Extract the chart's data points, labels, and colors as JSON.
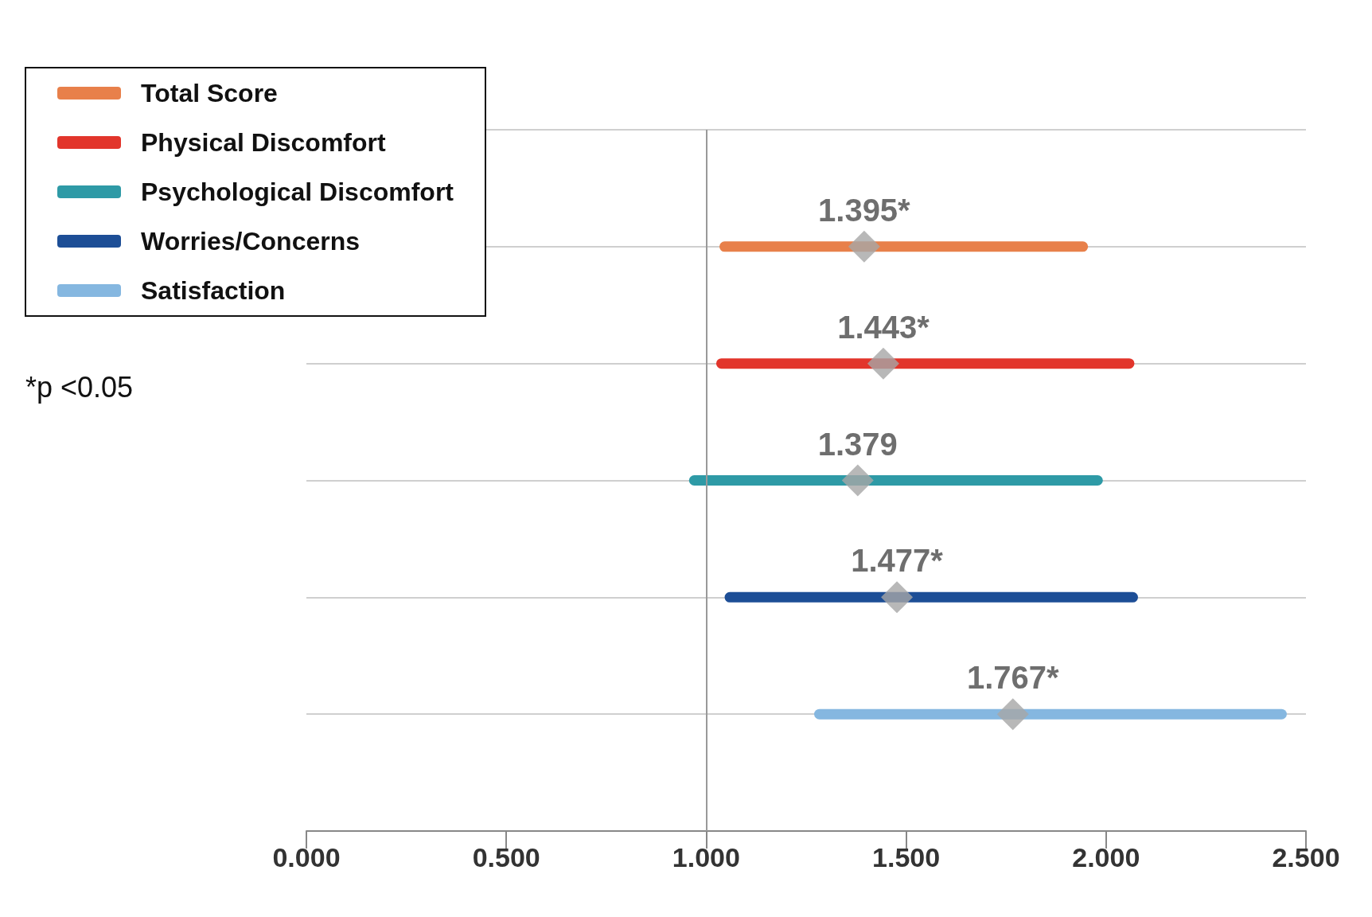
{
  "chart_data": {
    "type": "bar",
    "orientation": "horizontal",
    "categories": [
      null,
      null,
      null,
      null,
      null,
      null,
      null
    ],
    "series": [
      {
        "name": "Total Score",
        "color": "#e8804a",
        "base": [
          null,
          1.033,
          null,
          null,
          null,
          null,
          null
        ],
        "values": [
          null,
          0.922,
          null,
          null,
          null,
          null,
          null
        ]
      },
      {
        "name": "Physical Discomfort",
        "color": "#e2352b",
        "base": [
          null,
          null,
          1.025,
          null,
          null,
          null,
          null
        ],
        "values": [
          null,
          null,
          1.046,
          null,
          null,
          null,
          null
        ]
      },
      {
        "name": "Psychological Discomfort",
        "color": "#2e9aa6",
        "base": [
          null,
          null,
          null,
          0.957,
          null,
          null,
          null
        ],
        "values": [
          null,
          null,
          null,
          1.035,
          null,
          null,
          null
        ]
      },
      {
        "name": "Worries/Concerns",
        "color": "#1d4e96",
        "base": [
          null,
          null,
          null,
          null,
          1.046,
          null,
          null
        ],
        "values": [
          null,
          null,
          null,
          null,
          1.034,
          null,
          null
        ]
      },
      {
        "name": "Satisfaction",
        "color": "#85b7e0",
        "base": [
          null,
          null,
          null,
          null,
          null,
          1.27,
          null
        ],
        "values": [
          null,
          null,
          null,
          null,
          null,
          1.182,
          null
        ]
      },
      {
        "type": "scatter",
        "color": "#a6a6a6",
        "marker": "diamond",
        "values": [
          null,
          1.395,
          1.443,
          1.379,
          1.477,
          1.767,
          null
        ],
        "value_labels": [
          null,
          "1.395*",
          "1.443*",
          "1.379",
          "1.477*",
          "1.767*",
          null
        ]
      }
    ],
    "xlim": [
      0,
      2.5
    ],
    "xticks": [
      {
        "value": 0,
        "label": "0.000"
      },
      {
        "value": 0.5,
        "label": "0.500"
      },
      {
        "value": 1,
        "label": "1.000"
      },
      {
        "value": 1.5,
        "label": "1.500"
      },
      {
        "value": 2,
        "label": "2.000"
      },
      {
        "value": 2.5,
        "label": "2.500"
      }
    ],
    "ref_lines": [
      {
        "axis": "x",
        "value": 1,
        "color": "#999999"
      }
    ],
    "grid": "y",
    "legend": "top left",
    "annotations": [
      "*p <0.05"
    ]
  }
}
